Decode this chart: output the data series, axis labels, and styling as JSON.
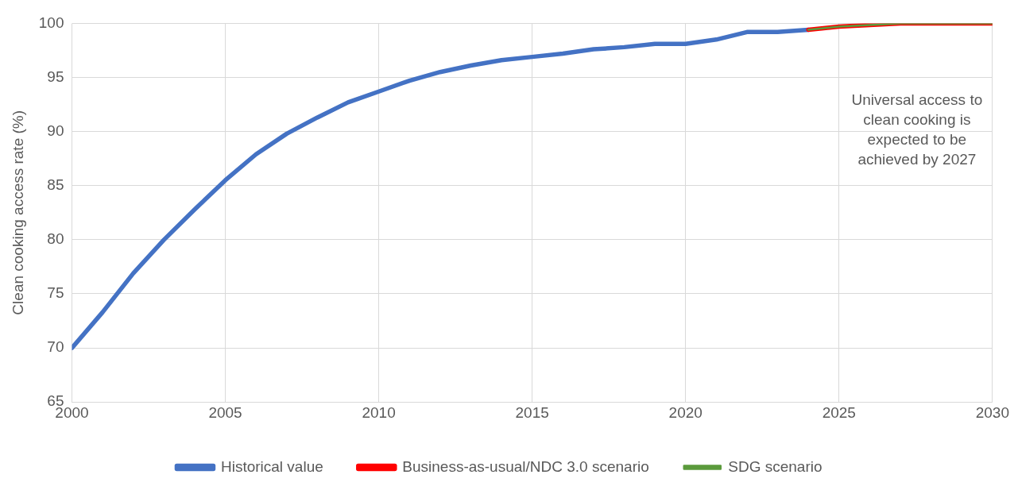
{
  "chart_data": {
    "type": "line",
    "ylabel": "Clean cooking access rate (%)",
    "xlim": [
      2000,
      2030
    ],
    "xticks": [
      2000,
      2005,
      2010,
      2015,
      2020,
      2025,
      2030
    ],
    "ylim": [
      65,
      100
    ],
    "yticks": [
      65,
      70,
      75,
      80,
      85,
      90,
      95,
      100
    ],
    "grid": true,
    "legend": "bottom",
    "marker": "none",
    "line_style": "solid",
    "annotations": [
      "Universal access to clean cooking is expected to be achieved by 2027"
    ],
    "series": [
      {
        "name": "Historical value",
        "color": "#4472c4",
        "x": [
          2000,
          2001,
          2002,
          2003,
          2004,
          2005,
          2006,
          2007,
          2008,
          2009,
          2010,
          2011,
          2012,
          2013,
          2014,
          2015,
          2016,
          2017,
          2018,
          2019,
          2020,
          2021,
          2022,
          2023,
          2024
        ],
        "values": [
          70,
          73.3,
          76.9,
          80,
          82.8,
          85.5,
          87.9,
          89.8,
          91.3,
          92.7,
          93.7,
          94.7,
          95.5,
          96.1,
          96.6,
          96.9,
          97.2,
          97.6,
          97.8,
          98.1,
          98.1,
          98.5,
          99.2,
          99.2,
          99.4
        ]
      },
      {
        "name": "Business-as-usual/NDC 3.0 scenario",
        "color": "#ff0000",
        "x": [
          2024,
          2025,
          2026,
          2027,
          2028,
          2029,
          2030
        ],
        "values": [
          99.4,
          99.7,
          99.85,
          100,
          100,
          100,
          100
        ]
      },
      {
        "name": "SDG scenario",
        "color": "#5b9a3c",
        "x": [
          2024,
          2025,
          2026,
          2027,
          2028,
          2029,
          2030
        ],
        "values": [
          99.4,
          99.7,
          99.85,
          100,
          100,
          100,
          100
        ]
      }
    ]
  }
}
